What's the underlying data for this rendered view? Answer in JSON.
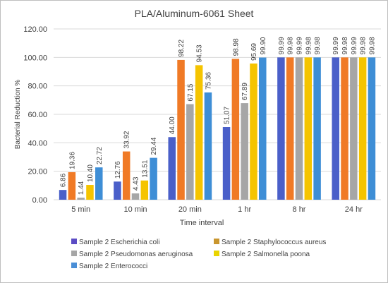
{
  "chart_data": {
    "type": "bar",
    "title": "PLA/Aluminum-6061 Sheet",
    "xlabel": "Time interval",
    "ylabel": "Bacterial Reduction %",
    "ylim": [
      0,
      120
    ],
    "yticks": [
      "0.00",
      "20.00",
      "40.00",
      "60.00",
      "80.00",
      "100.00",
      "120.00"
    ],
    "grid": true,
    "legend_position": "bottom",
    "categories": [
      "5 min",
      "10 min",
      "20 min",
      "1 hr",
      "8 hr",
      "24 hr"
    ],
    "series": [
      {
        "name": "Sample 2 Escherichia coli",
        "color": "#4a5fc9",
        "values": [
          6.86,
          12.76,
          44.0,
          51.07,
          99.99,
          99.99
        ],
        "labels": [
          "6.86",
          "12.76",
          "44.00",
          "51.07",
          "99.99",
          "99.99"
        ]
      },
      {
        "name": "Sample 2 Staphylococcus aureus",
        "color": "#f07a26",
        "values": [
          19.36,
          33.92,
          98.22,
          98.98,
          99.98,
          99.98
        ],
        "labels": [
          "19.36",
          "33.92",
          "98.22",
          "98.98",
          "99.98",
          "99.98"
        ]
      },
      {
        "name": "Sample 2 Pseudomonas aeruginosa",
        "color": "#a6a6a6",
        "values": [
          1.44,
          4.43,
          67.15,
          67.89,
          99.99,
          99.99
        ],
        "labels": [
          "1.44",
          "4.43",
          "67.15",
          "67.89",
          "99.99",
          "99.99"
        ]
      },
      {
        "name": "Sample 2 Salmonella poona",
        "color": "#f5c400",
        "values": [
          10.4,
          13.51,
          94.53,
          95.69,
          99.98,
          99.98
        ],
        "labels": [
          "10.40",
          "13.51",
          "94.53",
          "95.69",
          "99.98",
          "99.98"
        ]
      },
      {
        "name": "Sample 2 Enterococci",
        "color": "#3e8ed6",
        "values": [
          22.72,
          29.44,
          75.36,
          99.9,
          99.98,
          99.98
        ],
        "labels": [
          "22.72",
          "29.44",
          "75.36",
          "99.90",
          "99.98",
          "99.98"
        ]
      }
    ],
    "legend_colors": [
      "#5b4cc4",
      "#c9962e",
      "#a6a6a6",
      "#e9d400",
      "#4a8ed6"
    ]
  }
}
